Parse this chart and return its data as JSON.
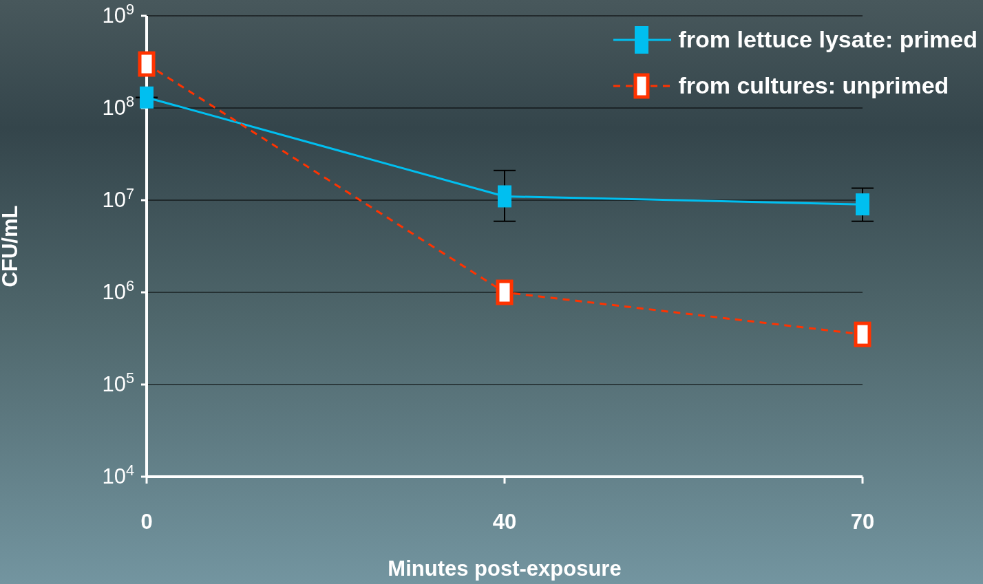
{
  "chart_data": {
    "type": "line",
    "xlabel": "Minutes post-exposure",
    "ylabel": "CFU/mL",
    "categories": [
      "0",
      "40",
      "70"
    ],
    "series": [
      {
        "name": "from lettuce lysate: primed",
        "color": "#00bff0",
        "values": [
          130000000,
          11000000,
          9000000
        ],
        "errors": [
          null,
          [
            5900000,
            21000000
          ],
          [
            5900000,
            13500000
          ]
        ],
        "line_style": "solid"
      },
      {
        "name": "from cultures: unprimed",
        "color": "#ff3300",
        "values": [
          300000000,
          1000000,
          350000
        ],
        "line_style": "dashed"
      }
    ],
    "log": "y",
    "ylim": [
      10000,
      1000000000
    ],
    "yticks": [
      {
        "value": 10000,
        "label": "10$^{4}$"
      },
      {
        "value": 100000,
        "label": "10$^{5}$"
      },
      {
        "value": 1000000,
        "label": "10$^{6}$"
      },
      {
        "value": 10000000,
        "label": "10$^{7}$"
      },
      {
        "value": 100000000,
        "label": "10$^{8}$"
      },
      {
        "value": 1000000000,
        "label": "10$^{9}$"
      }
    ],
    "grid": "y",
    "legend": "top right",
    "marker": "square"
  }
}
